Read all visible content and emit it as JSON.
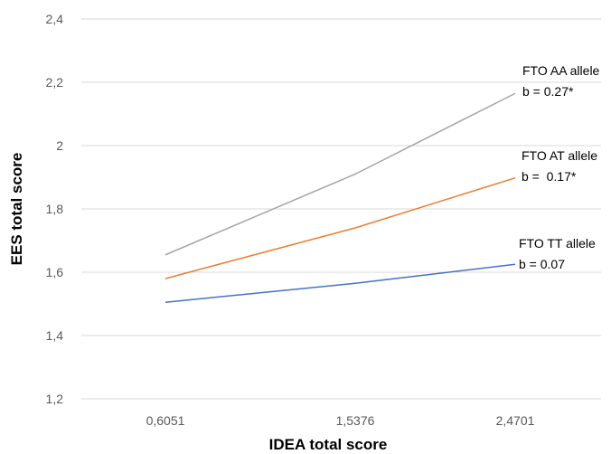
{
  "chart_data": {
    "type": "line",
    "title": "",
    "xlabel": "IDEA total score",
    "ylabel": "EES total score",
    "categories": [
      "0,6051",
      "1,5376",
      "2,4701"
    ],
    "ylim": [
      1.2,
      2.4
    ],
    "yticks": [
      "1,2",
      "1,4",
      "1,6",
      "1,8",
      "2",
      "2,2",
      "2,4"
    ],
    "grid": true,
    "series": [
      {
        "label_line1": "FTO AA allele",
        "label_line2": "b = 0.27*",
        "color": "#a5a5a5",
        "values": [
          1.655,
          1.91,
          2.165
        ]
      },
      {
        "label_line1": "FTO AT allele",
        "label_line2": "b =  0.17*",
        "color": "#ed7d31",
        "values": [
          1.58,
          1.74,
          1.898
        ]
      },
      {
        "label_line1": "FTO TT allele",
        "label_line2": "b = 0.07",
        "color": "#4472c4",
        "values": [
          1.505,
          1.565,
          1.625
        ]
      }
    ]
  }
}
